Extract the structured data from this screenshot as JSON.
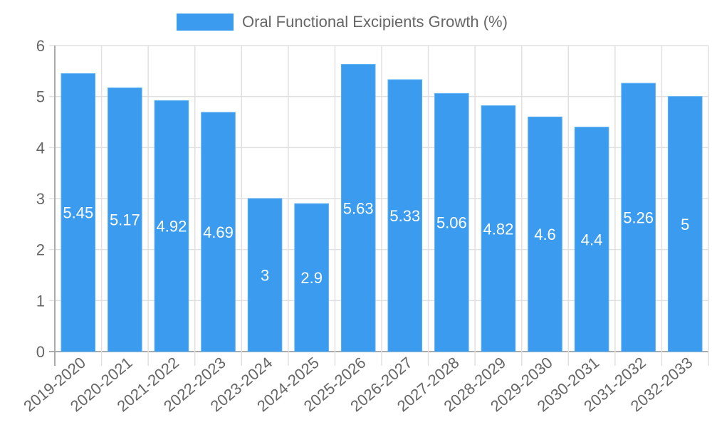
{
  "chart_data": {
    "type": "bar",
    "title": "",
    "categories": [
      "2019-2020",
      "2020-2021",
      "2021-2022",
      "2022-2023",
      "2023-2024",
      "2024-2025",
      "2025-2026",
      "2026-2027",
      "2027-2028",
      "2028-2029",
      "2029-2030",
      "2030-2031",
      "2031-2032",
      "2032-2033"
    ],
    "series": [
      {
        "name": "Oral Functional Excipients Growth (%)",
        "values": [
          5.45,
          5.17,
          4.92,
          4.69,
          3,
          2.9,
          5.63,
          5.33,
          5.06,
          4.82,
          4.6,
          4.4,
          5.26,
          5
        ],
        "color": "#3a9bef"
      }
    ],
    "xlabel": "",
    "ylabel": "",
    "ylim": [
      0,
      6
    ],
    "yticks": [
      0,
      1,
      2,
      3,
      4,
      5,
      6
    ],
    "grid": true,
    "legend_position": "top",
    "data_labels": true
  },
  "legend": {
    "label": "Oral Functional Excipients Growth (%)"
  }
}
